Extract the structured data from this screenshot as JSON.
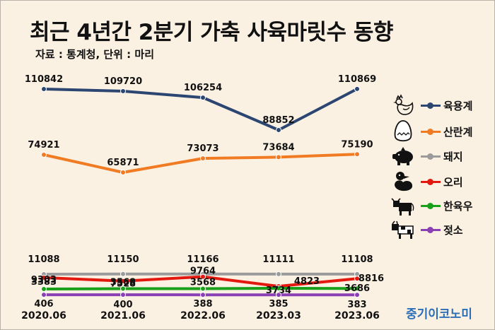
{
  "title": "최근 4년간 2분기 가축 사육마릿수 동향",
  "subtitle": "자료 : 통계청, 단위 : 마리",
  "brand": "중기이코노미",
  "legend": [
    {
      "label": "육용계",
      "color": "#2c4672",
      "icon": "chicken-icon"
    },
    {
      "label": "산란계",
      "color": "#f07b22",
      "icon": "egg-icon"
    },
    {
      "label": "돼지",
      "color": "#9b9b9b",
      "icon": "pig-icon"
    },
    {
      "label": "오리",
      "color": "#e3180f",
      "icon": "duck-icon"
    },
    {
      "label": "한육우",
      "color": "#18a01a",
      "icon": "cow-icon"
    },
    {
      "label": "젖소",
      "color": "#8a3fb5",
      "icon": "dairy-cow-icon"
    }
  ],
  "chart_data": {
    "type": "line",
    "categories": [
      "2020.06",
      "2021.06",
      "2022.06",
      "2023.03",
      "2023.06"
    ],
    "series": [
      {
        "name": "육용계",
        "values": [
          110842,
          109720,
          106254,
          88852,
          110869
        ],
        "color": "#2c4672"
      },
      {
        "name": "산란계",
        "values": [
          74921,
          65871,
          73073,
          73684,
          75190
        ],
        "color": "#f07b22"
      },
      {
        "name": "돼지",
        "values": [
          11088,
          11150,
          11166,
          11111,
          11108
        ],
        "color": "#9b9b9b"
      },
      {
        "name": "오리",
        "values": [
          9303,
          7528,
          9764,
          4823,
          8816
        ],
        "color": "#e3180f"
      },
      {
        "name": "한육우",
        "values": [
          3383,
          3568,
          3568,
          3734,
          3686
        ],
        "color": "#18a01a"
      },
      {
        "name": "젖소",
        "values": [
          406,
          400,
          388,
          385,
          383
        ],
        "color": "#8a3fb5"
      }
    ]
  }
}
